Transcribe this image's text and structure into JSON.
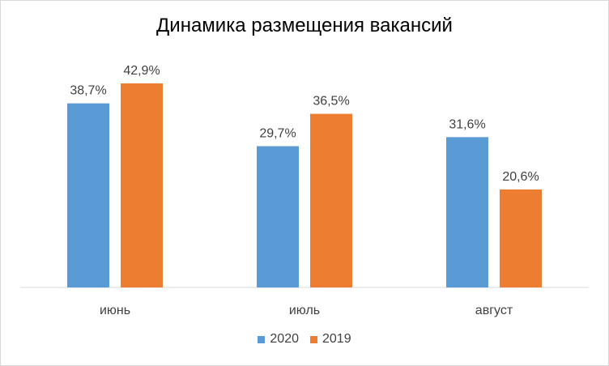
{
  "chart_data": {
    "type": "bar",
    "title": "Динамика размещения вакансий",
    "categories": [
      "июнь",
      "июль",
      "август"
    ],
    "series": [
      {
        "name": "2020",
        "values": [
          38.7,
          29.7,
          31.6
        ],
        "labels": [
          "38,7%",
          "29,7%",
          "31,6%"
        ],
        "color": "#5B9BD5"
      },
      {
        "name": "2019",
        "values": [
          42.9,
          36.5,
          20.6
        ],
        "labels": [
          "42,9%",
          "36,5%",
          "20,6%"
        ],
        "color": "#ED7D31"
      }
    ],
    "ylim": [
      0,
      48
    ],
    "grid": false,
    "legend": "bottom",
    "xlabel": "",
    "ylabel": ""
  }
}
